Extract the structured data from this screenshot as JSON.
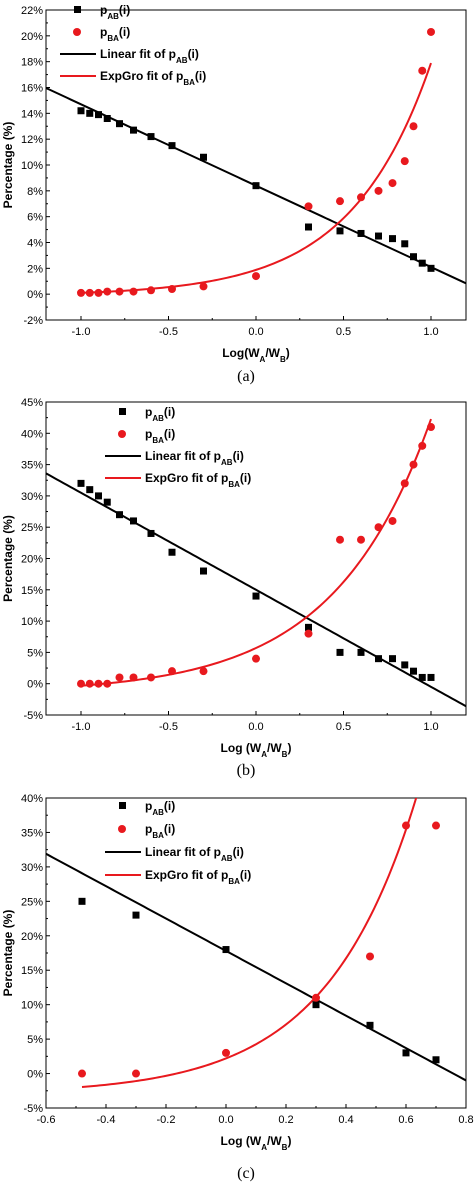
{
  "colors": {
    "series_ab": "#000000",
    "series_ba": "#e8191e"
  },
  "legend_labels": {
    "p_ab": "p_AB(i)",
    "p_ba": "p_BA(i)",
    "fit_ab": "Linear fit of p_AB(i)",
    "fit_ba": "ExpGro fit of p_BA(i)"
  },
  "chart_data": [
    {
      "type": "scatter",
      "caption": "(a)",
      "xlabel": "Log(W_A/W_B)",
      "ylabel": "Percentage (%)",
      "xlim": [
        -1.2,
        1.2
      ],
      "ylim": [
        -2,
        22
      ],
      "xticks": [
        -1.0,
        -0.5,
        0.0,
        0.5,
        1.0
      ],
      "xtick_labels": [
        "-1.0",
        "-0.5",
        "0.0",
        "0.5",
        "1.0"
      ],
      "yticks": [
        -2,
        0,
        2,
        4,
        6,
        8,
        10,
        12,
        14,
        16,
        18,
        20,
        22
      ],
      "ytick_labels": [
        "-2%",
        "0%",
        "2%",
        "4%",
        "6%",
        "8%",
        "10%",
        "12%",
        "14%",
        "16%",
        "18%",
        "20%",
        "22%"
      ],
      "grid": false,
      "legend_position": "top-left",
      "marker": "square",
      "series": [
        {
          "name": "p_AB(i)",
          "marker": "square",
          "color": "#000000",
          "x": [
            -1.0,
            -0.95,
            -0.9,
            -0.85,
            -0.78,
            -0.7,
            -0.6,
            -0.48,
            -0.3,
            0.0,
            0.3,
            0.48,
            0.6,
            0.7,
            0.78,
            0.85,
            0.9,
            0.95,
            1.0
          ],
          "y": [
            14.2,
            14.0,
            13.9,
            13.6,
            13.2,
            12.7,
            12.2,
            11.5,
            10.6,
            8.4,
            5.2,
            4.9,
            4.7,
            4.5,
            4.3,
            3.9,
            2.9,
            2.4,
            2.0
          ]
        },
        {
          "name": "p_BA(i)",
          "marker": "circle",
          "color": "#e8191e",
          "x": [
            -1.0,
            -0.95,
            -0.9,
            -0.85,
            -0.78,
            -0.7,
            -0.6,
            -0.48,
            -0.3,
            0.0,
            0.3,
            0.48,
            0.6,
            0.7,
            0.78,
            0.85,
            0.9,
            0.95,
            1.0
          ],
          "y": [
            0.1,
            0.1,
            0.1,
            0.2,
            0.2,
            0.2,
            0.3,
            0.4,
            0.6,
            1.4,
            6.8,
            7.2,
            7.5,
            8.0,
            8.6,
            10.3,
            13.0,
            17.3,
            20.3
          ]
        }
      ],
      "fits": [
        {
          "name": "Linear fit of p_AB(i)",
          "kind": "linear",
          "color": "#000000",
          "x_range": [
            -1.2,
            1.2
          ],
          "intercept": 8.4,
          "slope": -6.3
        },
        {
          "name": "ExpGro fit of p_BA(i)",
          "kind": "exp",
          "color": "#e8191e",
          "x_range": [
            -1.0,
            1.0
          ],
          "y0": -0.12,
          "A": 2.0,
          "t": 0.455
        }
      ]
    },
    {
      "type": "scatter",
      "caption": "(b)",
      "xlabel": "Log (W_A/W_B)",
      "ylabel": "Percentage (%)",
      "xlim": [
        -1.2,
        1.2
      ],
      "ylim": [
        -5,
        45
      ],
      "xticks": [
        -1.0,
        -0.5,
        0.0,
        0.5,
        1.0
      ],
      "xtick_labels": [
        "-1.0",
        "-0.5",
        "0.0",
        "0.5",
        "1.0"
      ],
      "yticks": [
        -5,
        0,
        5,
        10,
        15,
        20,
        25,
        30,
        35,
        40,
        45
      ],
      "ytick_labels": [
        "-5%",
        "0%",
        "5%",
        "10%",
        "15%",
        "20%",
        "25%",
        "30%",
        "35%",
        "40%",
        "45%"
      ],
      "grid": false,
      "legend_position": "top-center",
      "series": [
        {
          "name": "p_AB(i)",
          "marker": "square",
          "color": "#000000",
          "x": [
            -1.0,
            -0.95,
            -0.9,
            -0.85,
            -0.78,
            -0.7,
            -0.6,
            -0.48,
            -0.3,
            0.0,
            0.3,
            0.48,
            0.6,
            0.7,
            0.78,
            0.85,
            0.9,
            0.95,
            1.0
          ],
          "y": [
            32,
            31,
            30,
            29,
            27,
            26,
            24,
            21,
            18,
            14,
            9,
            5,
            5,
            4,
            4,
            3,
            2,
            1,
            1
          ]
        },
        {
          "name": "p_BA(i)",
          "marker": "circle",
          "color": "#e8191e",
          "x": [
            -1.0,
            -0.95,
            -0.9,
            -0.85,
            -0.78,
            -0.7,
            -0.6,
            -0.48,
            -0.3,
            0.0,
            0.3,
            0.48,
            0.6,
            0.7,
            0.78,
            0.85,
            0.9,
            0.95,
            1.0
          ],
          "y": [
            0,
            0,
            0,
            0,
            1,
            1,
            1,
            2,
            2,
            4,
            8,
            23,
            23,
            25,
            26,
            32,
            35,
            38,
            41
          ]
        }
      ],
      "fits": [
        {
          "name": "Linear fit of p_AB(i)",
          "kind": "linear",
          "color": "#000000",
          "x_range": [
            -1.2,
            1.2
          ],
          "intercept": 15.0,
          "slope": -15.5
        },
        {
          "name": "ExpGro fit of p_BA(i)",
          "kind": "exp",
          "color": "#e8191e",
          "x_range": [
            -1.0,
            1.0
          ],
          "y0": -1.5,
          "A": 7.2,
          "t": 0.554
        }
      ]
    },
    {
      "type": "scatter",
      "caption": "(c)",
      "xlabel": "Log (W_A/W_B)",
      "ylabel": "Percentage (%)",
      "xlim": [
        -0.6,
        0.8
      ],
      "ylim": [
        -5,
        40
      ],
      "xticks": [
        -0.6,
        -0.4,
        -0.2,
        0.0,
        0.2,
        0.4,
        0.6,
        0.8
      ],
      "xtick_labels": [
        "-0.6",
        "-0.4",
        "-0.2",
        "0.0",
        "0.2",
        "0.4",
        "0.6",
        "0.8"
      ],
      "yticks": [
        -5,
        0,
        5,
        10,
        15,
        20,
        25,
        30,
        35,
        40
      ],
      "ytick_labels": [
        "-5%",
        "0%",
        "5%",
        "10%",
        "15%",
        "20%",
        "25%",
        "30%",
        "35%",
        "40%"
      ],
      "grid": false,
      "legend_position": "top-center",
      "series": [
        {
          "name": "p_AB(i)",
          "marker": "square",
          "color": "#000000",
          "x": [
            -0.48,
            -0.3,
            0.0,
            0.3,
            0.48,
            0.6,
            0.7
          ],
          "y": [
            25,
            23,
            18,
            10,
            7,
            3,
            2
          ]
        },
        {
          "name": "p_BA(i)",
          "marker": "circle",
          "color": "#e8191e",
          "x": [
            -0.48,
            -0.3,
            0.0,
            0.3,
            0.48,
            0.6,
            0.7
          ],
          "y": [
            0,
            0,
            3,
            11,
            17,
            36,
            36
          ]
        }
      ],
      "fits": [
        {
          "name": "Linear fit of p_AB(i)",
          "kind": "linear",
          "color": "#000000",
          "x_range": [
            -0.6,
            0.8
          ],
          "intercept": 17.8,
          "slope": -23.5
        },
        {
          "name": "ExpGro fit of p_BA(i)",
          "kind": "exp",
          "color": "#e8191e",
          "x_range": [
            -0.48,
            0.7
          ],
          "y0": -3.0,
          "A": 5.2,
          "t": 0.3
        }
      ]
    }
  ]
}
